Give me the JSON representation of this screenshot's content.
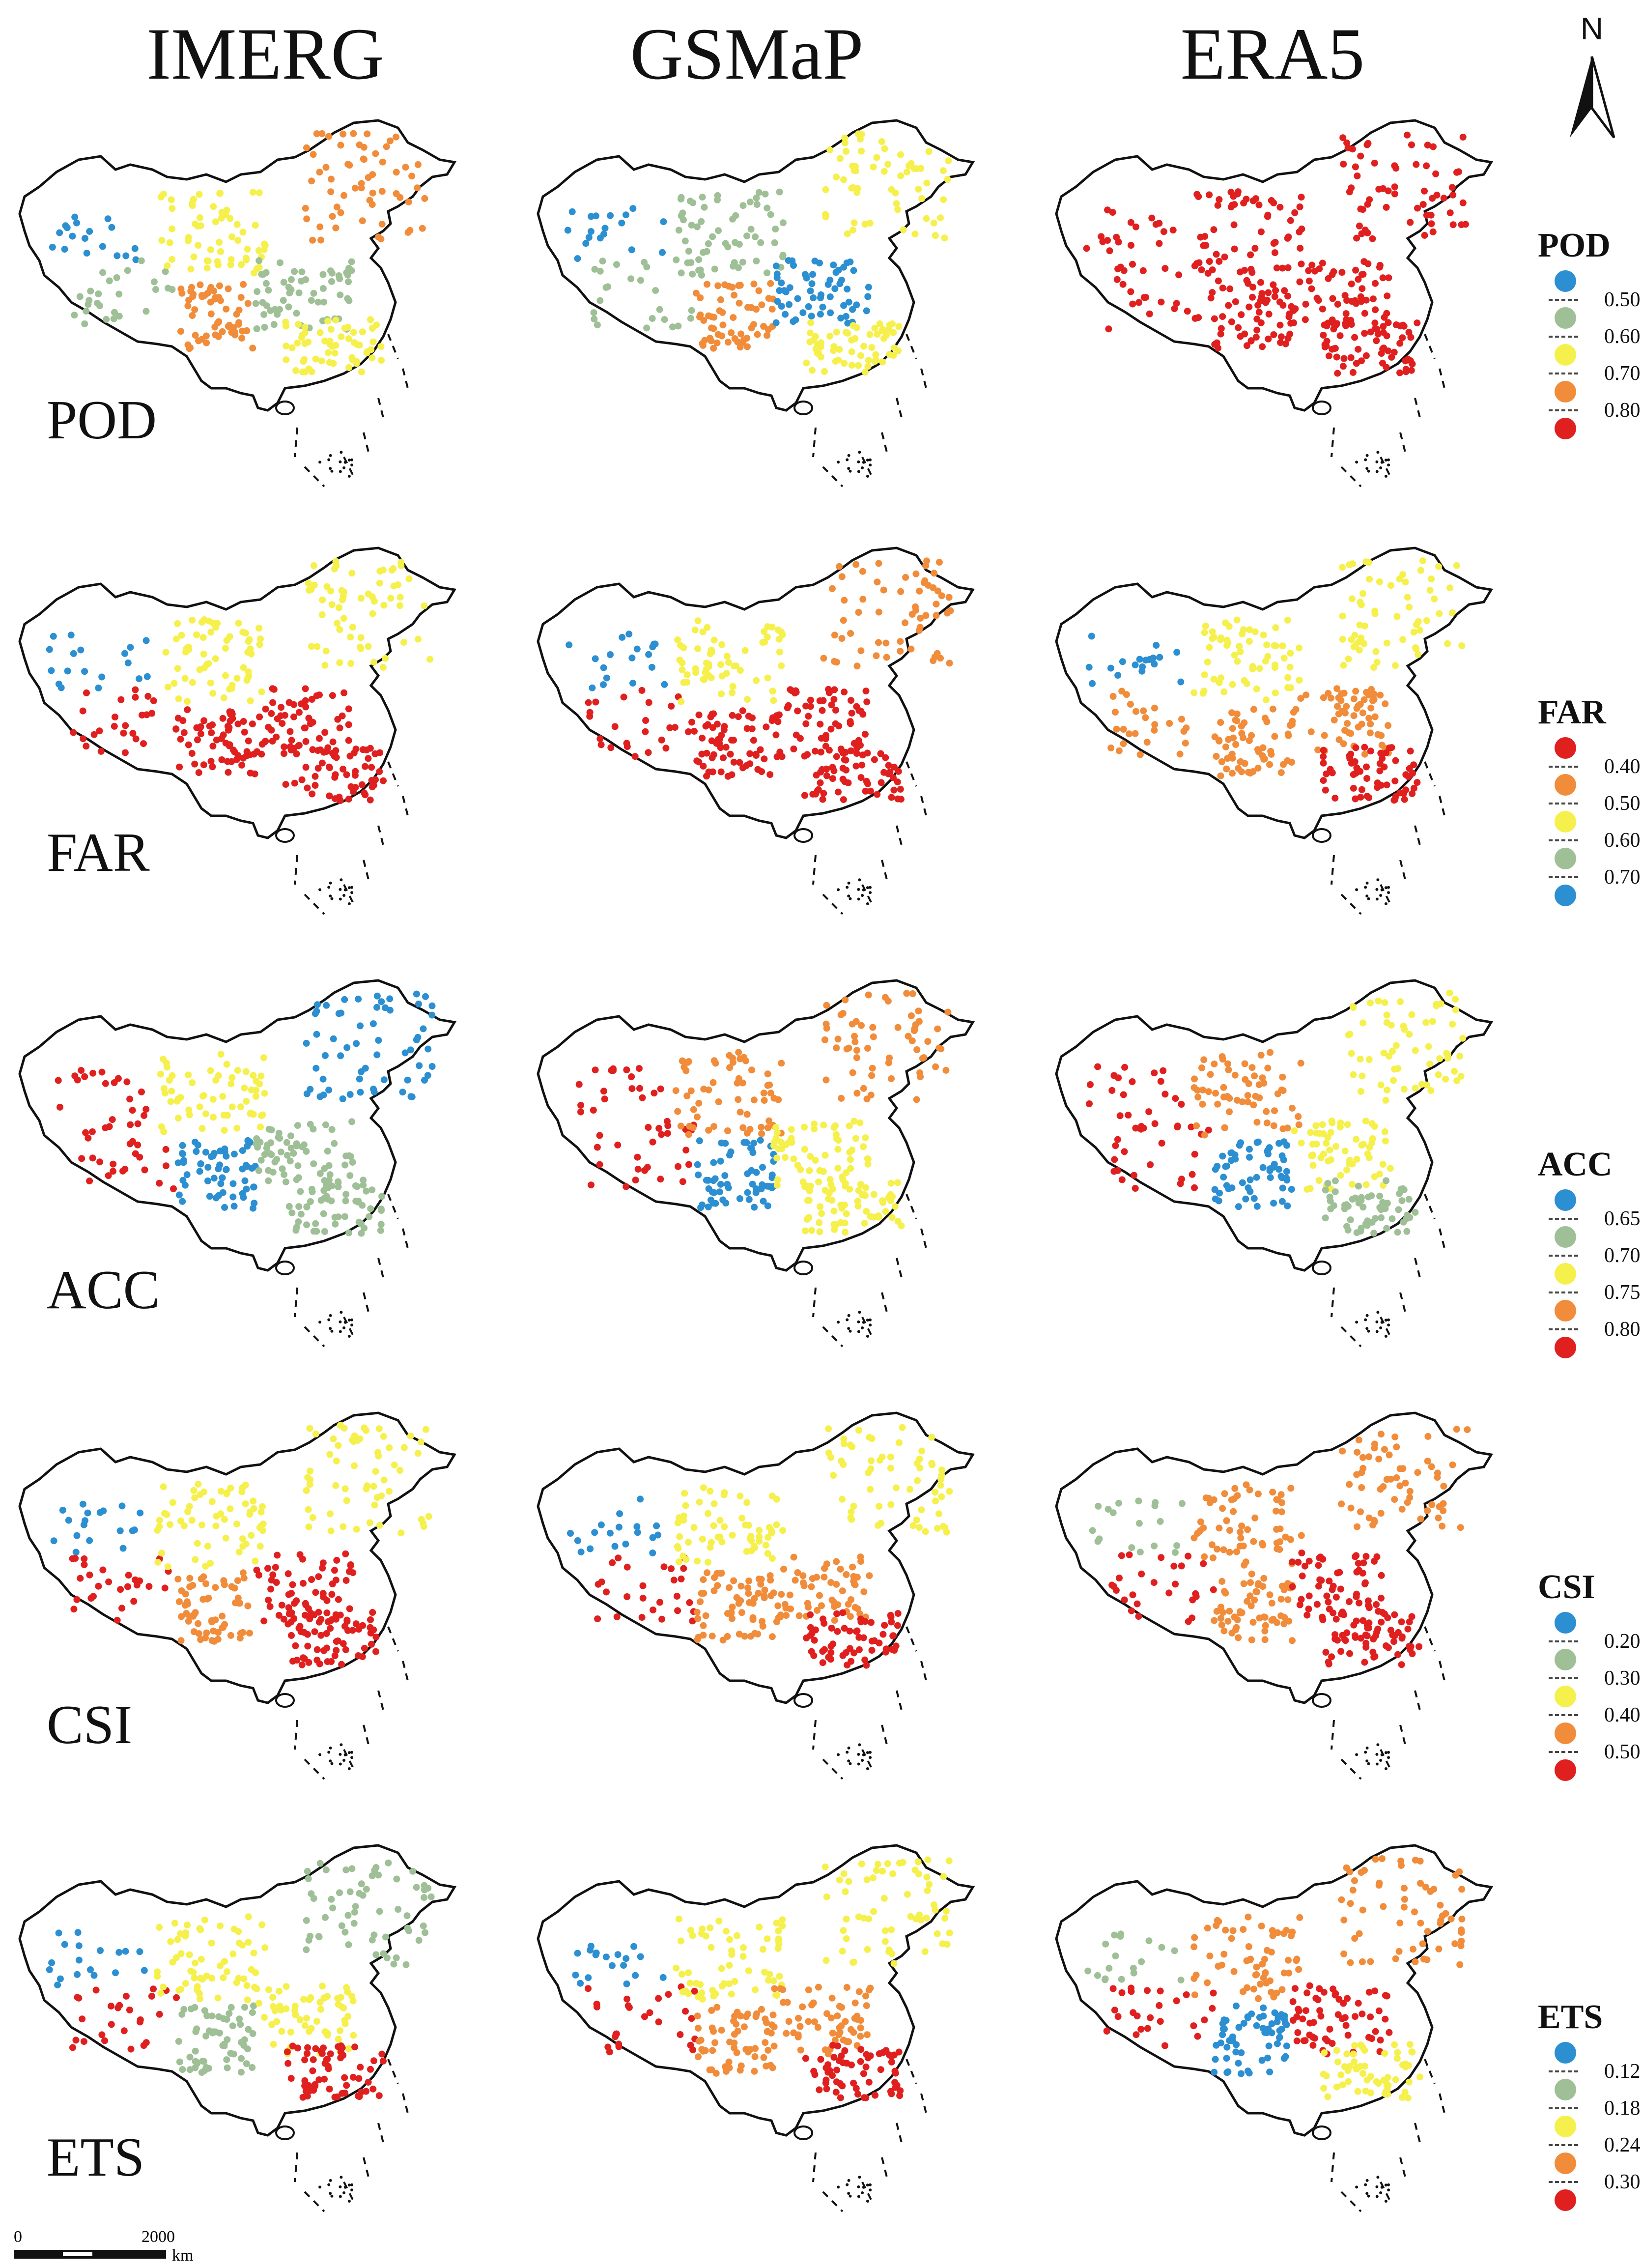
{
  "columns": {
    "imerg": "IMERG",
    "gsmap": "GSMaP",
    "era5": "ERA5"
  },
  "rows": {
    "pod": "POD",
    "far": "FAR",
    "acc": "ACC",
    "csi": "CSI",
    "ets": "ETS"
  },
  "north_arrow": {
    "label": "N",
    "icon": "north-arrow-icon"
  },
  "scale_bar": {
    "start": "0",
    "end": "2000",
    "unit": "km"
  },
  "colors": {
    "blue": "#2b8fd1",
    "sage": "#9fbf97",
    "yellow": "#f5f04c",
    "orange": "#f08c3a",
    "red": "#e01f1f"
  },
  "legends": {
    "pod": {
      "title": "POD",
      "values": [
        "0.50",
        "0.60",
        "0.70",
        "0.80"
      ],
      "classes": [
        "blue",
        "sage",
        "yellow",
        "orange",
        "red"
      ]
    },
    "far": {
      "title": "FAR",
      "values": [
        "0.40",
        "0.50",
        "0.60",
        "0.70"
      ],
      "classes": [
        "red",
        "orange",
        "yellow",
        "sage",
        "blue"
      ]
    },
    "acc": {
      "title": "ACC",
      "values": [
        "0.65",
        "0.70",
        "0.75",
        "0.80"
      ],
      "classes": [
        "blue",
        "sage",
        "yellow",
        "orange",
        "red"
      ]
    },
    "csi": {
      "title": "CSI",
      "values": [
        "0.20",
        "0.30",
        "0.40",
        "0.50"
      ],
      "classes": [
        "blue",
        "sage",
        "yellow",
        "orange",
        "red"
      ]
    },
    "ets": {
      "title": "ETS",
      "values": [
        "0.12",
        "0.18",
        "0.24",
        "0.30"
      ],
      "classes": [
        "blue",
        "sage",
        "yellow",
        "orange",
        "red"
      ]
    }
  },
  "map_patterns": {
    "pod": {
      "imerg": [
        "blue",
        "sage",
        "yellow",
        "orange",
        "sage",
        "yellow",
        "orange"
      ],
      "gsmap": [
        "blue",
        "sage",
        "sage",
        "orange",
        "blue",
        "yellow",
        "yellow"
      ],
      "era5": [
        "red",
        "red",
        "red",
        "red",
        "red",
        "red",
        "red"
      ]
    },
    "far": {
      "imerg": [
        "blue",
        "red",
        "yellow",
        "red",
        "red",
        "red",
        "yellow"
      ],
      "gsmap": [
        "blue",
        "red",
        "yellow",
        "red",
        "red",
        "red",
        "orange"
      ],
      "era5": [
        "blue",
        "orange",
        "yellow",
        "orange",
        "orange",
        "red",
        "yellow"
      ]
    },
    "acc": {
      "imerg": [
        "red",
        "red",
        "yellow",
        "blue",
        "sage",
        "sage",
        "blue"
      ],
      "gsmap": [
        "red",
        "red",
        "orange",
        "blue",
        "yellow",
        "yellow",
        "orange"
      ],
      "era5": [
        "red",
        "red",
        "orange",
        "blue",
        "yellow",
        "sage",
        "yellow"
      ]
    },
    "csi": {
      "imerg": [
        "blue",
        "red",
        "yellow",
        "orange",
        "red",
        "red",
        "yellow"
      ],
      "gsmap": [
        "blue",
        "red",
        "yellow",
        "orange",
        "orange",
        "red",
        "yellow"
      ],
      "era5": [
        "sage",
        "red",
        "orange",
        "orange",
        "red",
        "red",
        "orange"
      ]
    },
    "ets": {
      "imerg": [
        "blue",
        "red",
        "yellow",
        "sage",
        "yellow",
        "red",
        "sage"
      ],
      "gsmap": [
        "blue",
        "red",
        "yellow",
        "orange",
        "orange",
        "red",
        "yellow"
      ],
      "era5": [
        "sage",
        "red",
        "orange",
        "blue",
        "red",
        "yellow",
        "orange"
      ]
    }
  }
}
